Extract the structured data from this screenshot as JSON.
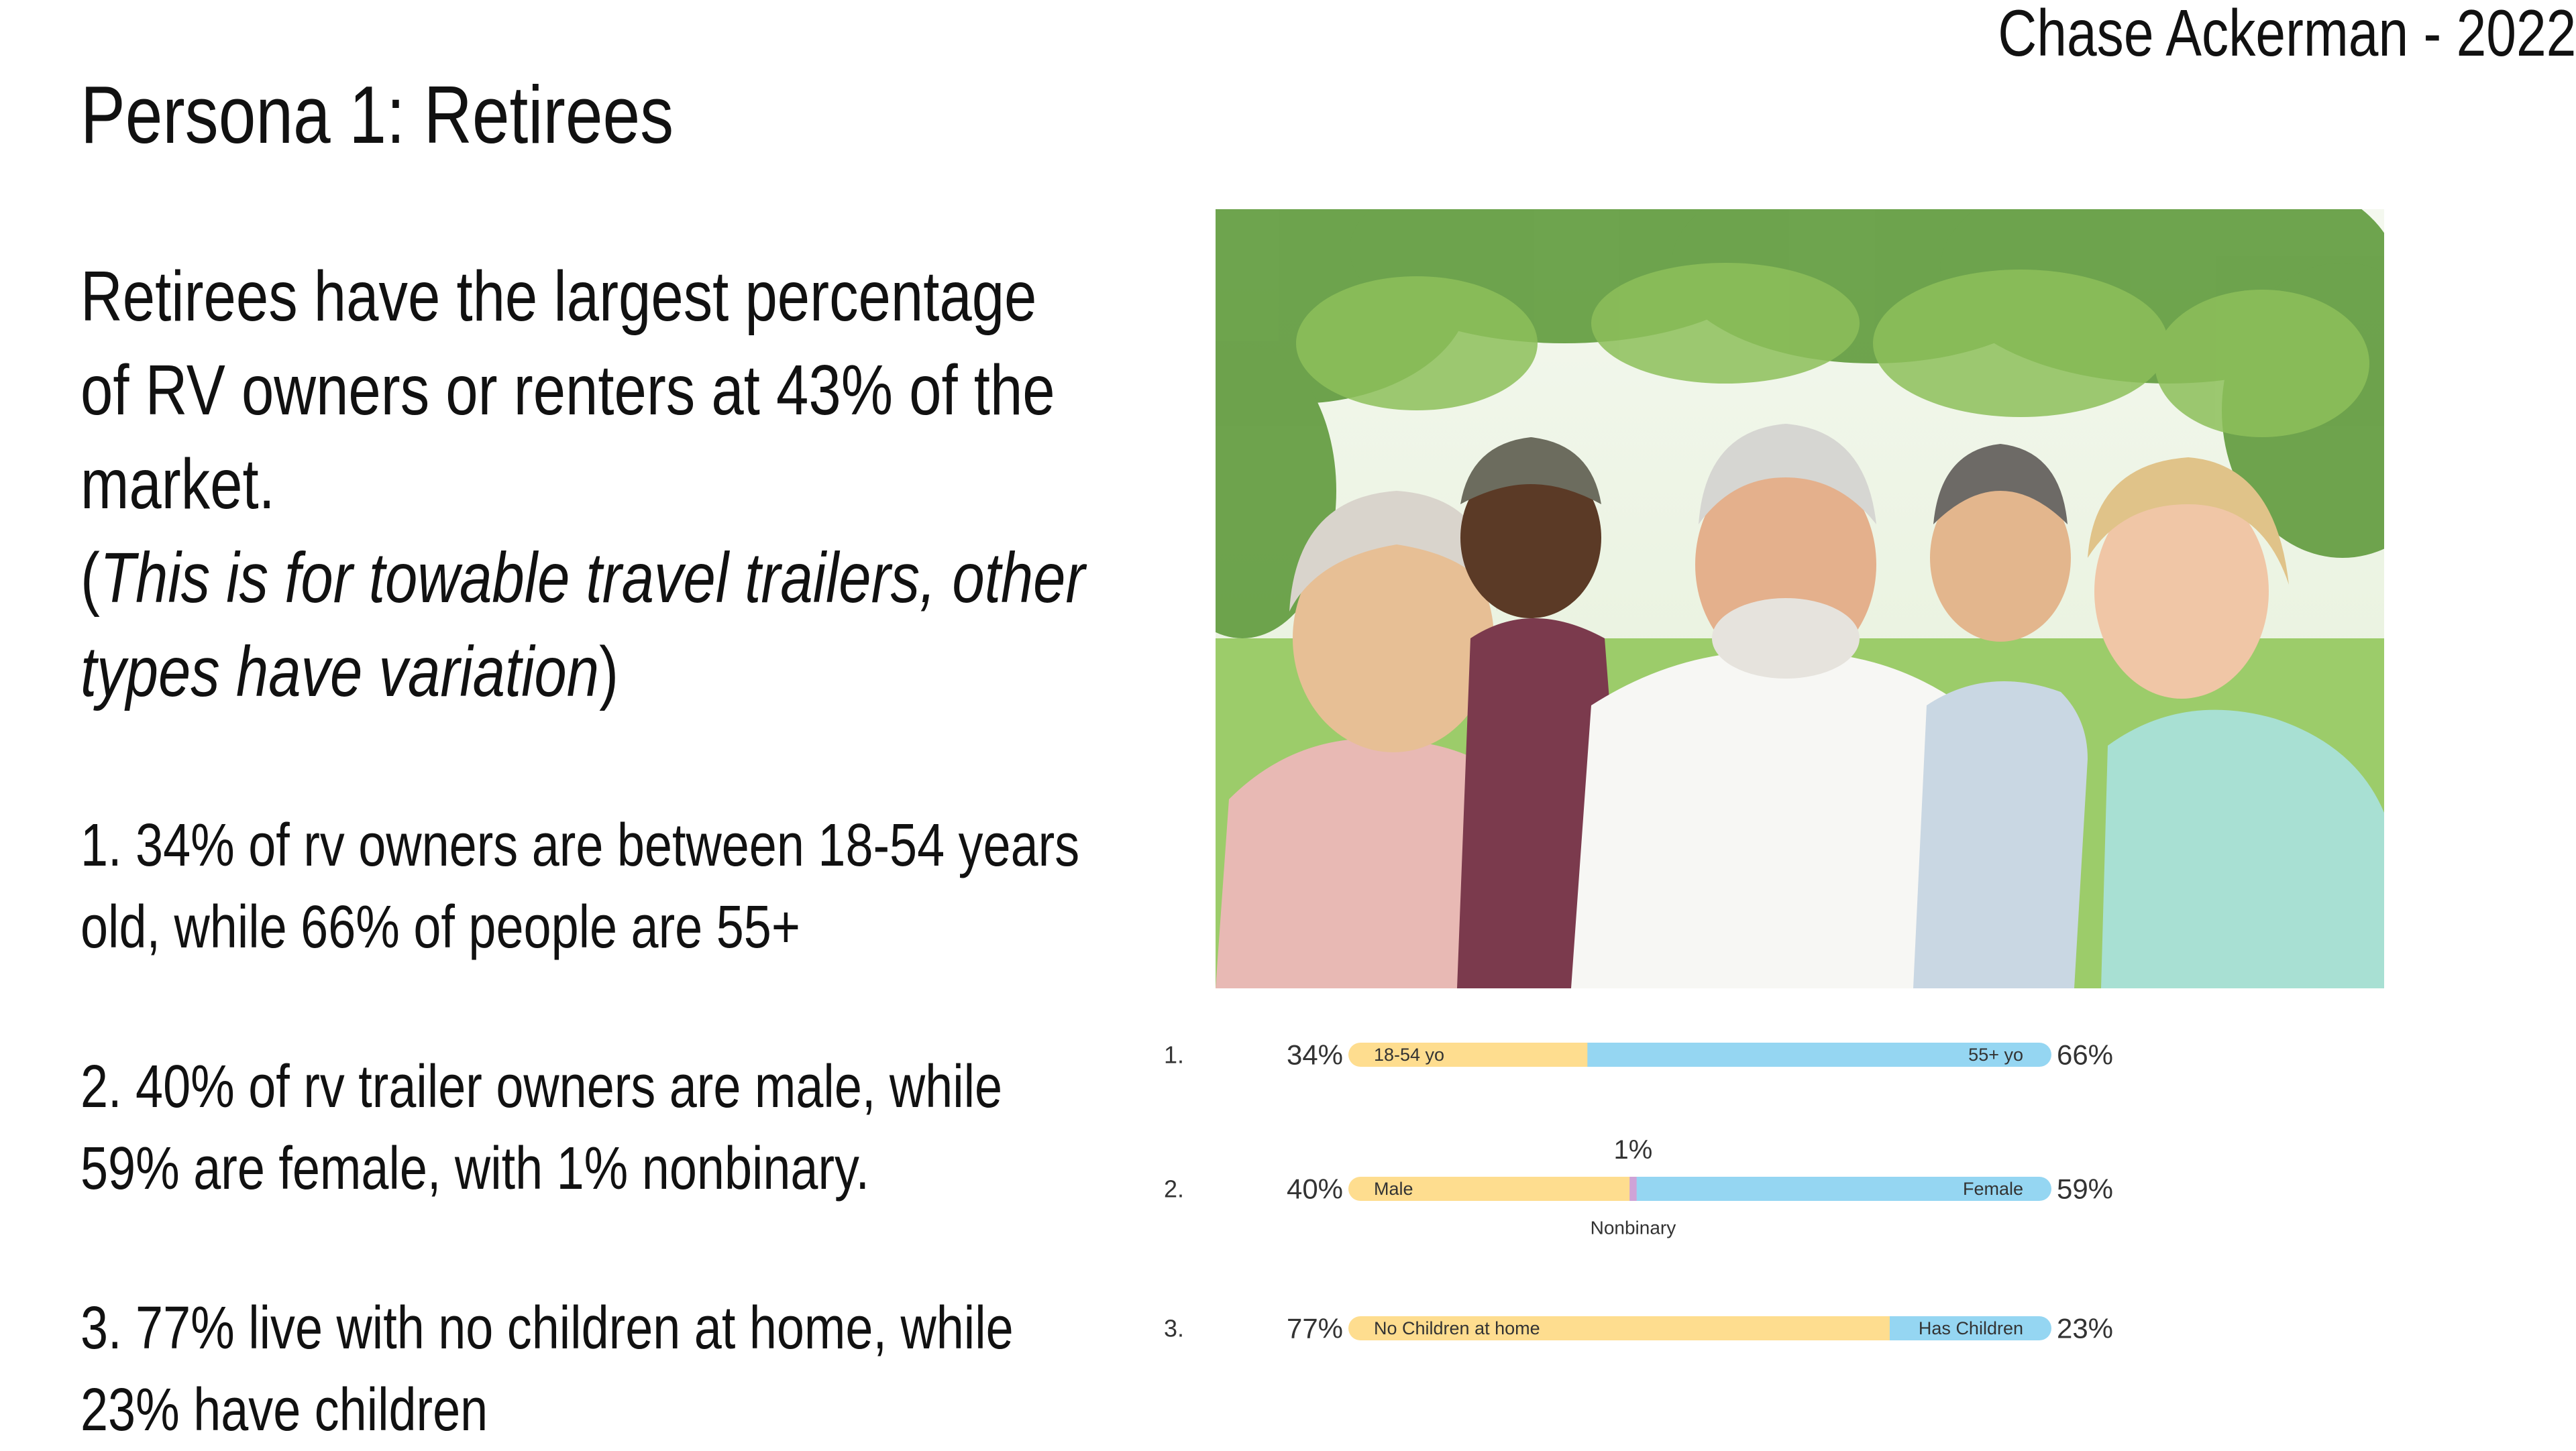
{
  "author": "Chase Ackerman - 2022",
  "title": "Persona 1: Retirees",
  "intro": {
    "line1": "Retirees have the largest percentage",
    "line2": "of RV owners or renters at 43% of the",
    "line3": "market.",
    "open_paren": "(",
    "italic_1": "This is for towable travel trailers, other",
    "italic_2": "types have variation",
    "close_paren": ")"
  },
  "stats": [
    {
      "line1": "1.  34% of rv owners are between 18-54 years",
      "line2": "old, while 66% of people are 55+"
    },
    {
      "line1": "2. 40% of rv trailer owners are male, while",
      "line2": "59% are female, with 1% nonbinary."
    },
    {
      "line1": "3. 77% live with no children at home, while",
      "line2": "23% have children"
    }
  ],
  "photo": {
    "subject": "group of five laughing retirees outdoors under trees"
  },
  "colors": {
    "yellow": "#fedd8f",
    "blue": "#95d6f2",
    "purple": "#cfa3d7",
    "label": "#333333"
  },
  "chart_data": {
    "type": "bar",
    "stacked": true,
    "orientation": "horizontal",
    "rows": [
      {
        "index": "1.",
        "left_label": "34%",
        "right_label": "66%",
        "segments": [
          {
            "name": "18-54 yo",
            "value": 34,
            "color": "yellow"
          },
          {
            "name": "55+ yo",
            "value": 66,
            "color": "blue"
          }
        ]
      },
      {
        "index": "2.",
        "left_label": "40%",
        "right_label": "59%",
        "segments": [
          {
            "name": "Male",
            "value": 40,
            "color": "yellow"
          },
          {
            "name": "Nonbinary",
            "value": 1,
            "color": "purple",
            "above": "1%",
            "below": "Nonbinary"
          },
          {
            "name": "Female",
            "value": 59,
            "color": "blue"
          }
        ]
      },
      {
        "index": "3.",
        "left_label": "77%",
        "right_label": "23%",
        "segments": [
          {
            "name": "No Children at home",
            "value": 77,
            "color": "yellow"
          },
          {
            "name": "Has Children",
            "value": 23,
            "color": "blue"
          }
        ]
      }
    ]
  }
}
